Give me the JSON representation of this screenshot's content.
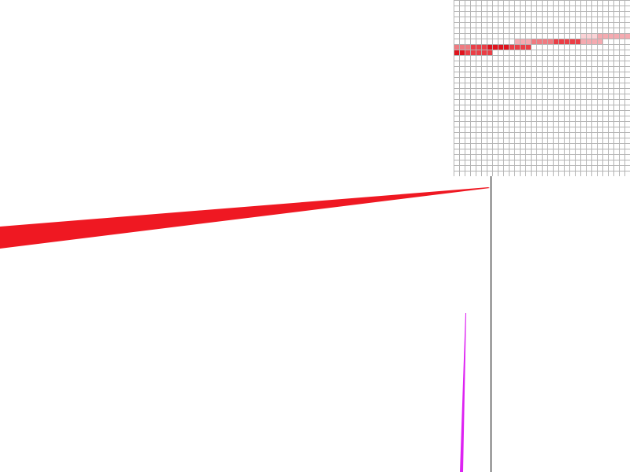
{
  "canvas": {
    "background": "#ffffff",
    "guide_line_color": "#000000"
  },
  "strokes": [
    {
      "name": "red-tapered-stroke",
      "color": "#ef1822"
    },
    {
      "name": "magenta-tapered-stroke",
      "color": "#dd22f2"
    }
  ],
  "zoom_panel": {
    "grid_color": "#b3b3b3",
    "background": "#ffffff",
    "pixel_colors": [
      "#e0141e",
      "#eb3e46",
      "#f07a80",
      "#f5aab0",
      "#fbd3d6"
    ]
  }
}
